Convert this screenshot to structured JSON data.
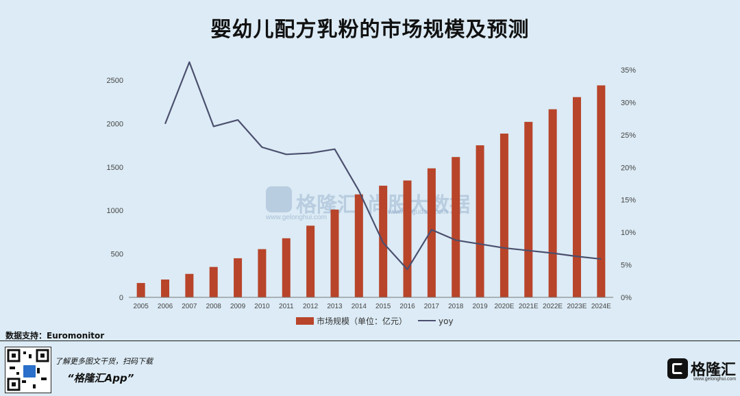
{
  "title": "婴幼儿配方乳粉的市场规模及预测",
  "source": "数据支持：Euromonitor",
  "watermark": {
    "brand": "格隆汇",
    "site": "www.gelonghui.com",
    "partner": "尚股大数据",
    "partner_site": "www.gugudata.com"
  },
  "footer": {
    "promo_line": "了解更多图文干货，扫码下载",
    "app_name": "“格隆汇App”",
    "logo_text": "格隆汇",
    "logo_sub": "www.gelonghui.com"
  },
  "colors": {
    "bar": "#b8442a",
    "line": "#4b4f6e",
    "background": "#dcebf5"
  },
  "chart_data": {
    "type": "bar",
    "title": "婴幼儿配方乳粉的市场规模及预测",
    "categories": [
      "2005",
      "2006",
      "2007",
      "2008",
      "2009",
      "2010",
      "2011",
      "2012",
      "2013",
      "2014",
      "2015",
      "2016",
      "2017",
      "2018",
      "2019",
      "2020E",
      "2021E",
      "2022E",
      "2023E",
      "2024E"
    ],
    "series": [
      {
        "name": "市场规模（单位：亿元）",
        "type": "bar",
        "axis": "left",
        "values": [
          165,
          205,
          270,
          350,
          450,
          555,
          680,
          825,
          1010,
          1185,
          1285,
          1345,
          1485,
          1615,
          1750,
          1885,
          2020,
          2165,
          2305,
          2440
        ]
      },
      {
        "name": "yoy",
        "type": "line",
        "axis": "right",
        "values": [
          null,
          26.7,
          36.2,
          26.3,
          27.3,
          23.1,
          22.0,
          22.2,
          22.8,
          16.4,
          8.4,
          4.3,
          10.4,
          8.8,
          8.2,
          7.6,
          7.2,
          6.8,
          6.3,
          5.9
        ]
      }
    ],
    "ylim_left": [
      0,
      2500
    ],
    "yticks_left": [
      0,
      500,
      1000,
      1500,
      2000,
      2500
    ],
    "ylim_right": [
      0,
      35
    ],
    "yticks_right": [
      "0%",
      "5%",
      "10%",
      "15%",
      "20%",
      "25%",
      "30%",
      "35%"
    ],
    "legend_position": "bottom",
    "grid": false
  }
}
